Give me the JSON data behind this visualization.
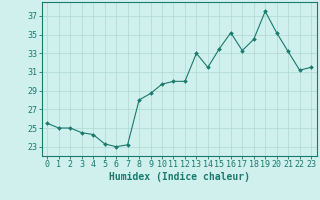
{
  "x": [
    0,
    1,
    2,
    3,
    4,
    5,
    6,
    7,
    8,
    9,
    10,
    11,
    12,
    13,
    14,
    15,
    16,
    17,
    18,
    19,
    20,
    21,
    22,
    23
  ],
  "y": [
    25.5,
    25.0,
    25.0,
    24.5,
    24.3,
    23.3,
    23.0,
    23.2,
    28.0,
    28.7,
    29.7,
    30.0,
    30.0,
    33.0,
    31.5,
    33.5,
    35.2,
    33.3,
    34.5,
    37.5,
    35.2,
    33.2,
    31.2,
    31.5
  ],
  "line_color": "#1a7a6e",
  "marker": "D",
  "marker_size": 2.0,
  "bg_color": "#cff0ec",
  "grid_color": "#b0d8d4",
  "xlabel": "Humidex (Indice chaleur)",
  "yticks": [
    23,
    25,
    27,
    29,
    31,
    33,
    35,
    37
  ],
  "xticks": [
    0,
    1,
    2,
    3,
    4,
    5,
    6,
    7,
    8,
    9,
    10,
    11,
    12,
    13,
    14,
    15,
    16,
    17,
    18,
    19,
    20,
    21,
    22,
    23
  ],
  "ylim": [
    22.0,
    38.5
  ],
  "xlim": [
    -0.5,
    23.5
  ],
  "label_fontsize": 7.0,
  "tick_fontsize": 6.0
}
